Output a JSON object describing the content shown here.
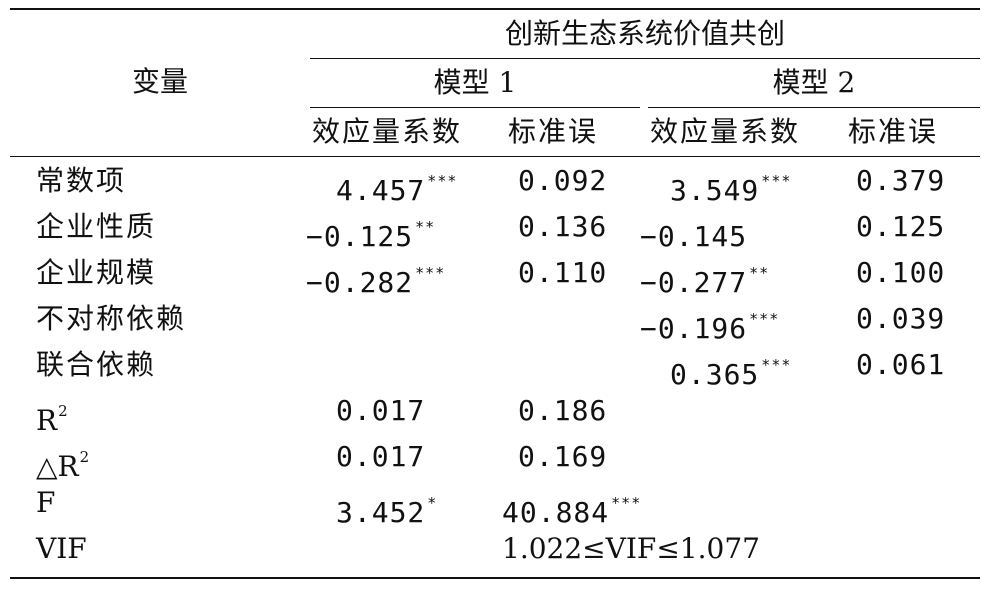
{
  "header": {
    "variable": "变量",
    "group": "创新生态系统价值共创",
    "model1": "模型 1",
    "model2": "模型 2",
    "coef": "效应量系数",
    "se": "标准误"
  },
  "rows": [
    {
      "label": "常数项",
      "m1c": "4.457",
      "m1s1": "***",
      "m1e": "0.092",
      "m2c": "3.549",
      "m2s1": "***",
      "m2e": "0.379"
    },
    {
      "label": "企业性质",
      "m1c": "−0.125",
      "m1s1": "**",
      "m1e": "0.136",
      "m2c": "−0.145",
      "m2s1": "",
      "m2e": "0.125"
    },
    {
      "label": "企业规模",
      "m1c": "−0.282",
      "m1s1": "***",
      "m1e": "0.110",
      "m2c": "−0.277",
      "m2s1": "**",
      "m2e": "0.100"
    },
    {
      "label": "不对称依赖",
      "m1c": "",
      "m1s1": "",
      "m1e": "",
      "m2c": "−0.196",
      "m2s1": "***",
      "m2e": "0.039"
    },
    {
      "label": "联合依赖",
      "m1c": "",
      "m1s1": "",
      "m1e": "",
      "m2c": "0.365",
      "m2s1": "***",
      "m2e": "0.061"
    }
  ],
  "stats": {
    "r2": {
      "label": "R",
      "sup": "2",
      "m1c": "0.017",
      "m1e": "0.186"
    },
    "dr2": {
      "label": "△R",
      "sup": "2",
      "m1c": "0.017",
      "m1e": "0.169"
    },
    "f": {
      "label": "F",
      "m1c": "3.452",
      "m1cs": "*",
      "m1e": "40.884",
      "m1es": "***"
    },
    "vif": {
      "label": "VIF",
      "value": "1.022≤VIF≤1.077"
    }
  }
}
